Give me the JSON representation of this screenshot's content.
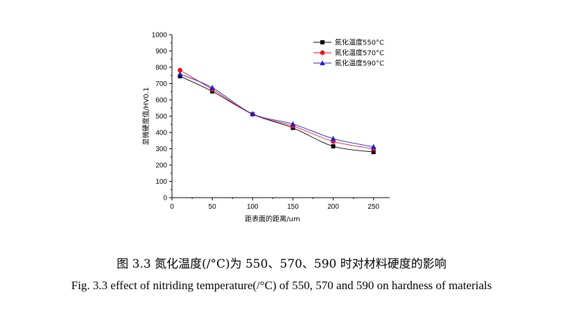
{
  "chart_data": {
    "type": "line",
    "xlabel": "距表面的距离/um",
    "ylabel": "显微硬度值/HV0.1",
    "xlim": [
      0,
      270
    ],
    "ylim": [
      0,
      1000
    ],
    "x_ticks": [
      0,
      50,
      100,
      150,
      200,
      250
    ],
    "y_ticks": [
      0,
      100,
      200,
      300,
      400,
      500,
      600,
      700,
      800,
      900,
      1000
    ],
    "x": [
      10,
      50,
      100,
      150,
      200,
      250
    ],
    "legend_position": "top-right",
    "grid": false,
    "series": [
      {
        "name": "氮化温度550°C",
        "marker": "square",
        "color": "#000000",
        "values": [
          745,
          652,
          512,
          428,
          315,
          280
        ]
      },
      {
        "name": "氮化温度570°C",
        "marker": "circle",
        "color": "#e8141b",
        "values": [
          782,
          665,
          512,
          440,
          345,
          300
        ]
      },
      {
        "name": "氮化温度590°C",
        "marker": "triangle",
        "color": "#1c1ccf",
        "values": [
          758,
          675,
          514,
          452,
          362,
          312
        ]
      }
    ]
  },
  "caption": {
    "cn": "图 3.3  氮化温度(/°C)为 550、570、590 时对材料硬度的影响",
    "en": "Fig. 3.3 effect of nitriding temperature(/°C) of 550, 570 and 590 on hardness of materials"
  }
}
